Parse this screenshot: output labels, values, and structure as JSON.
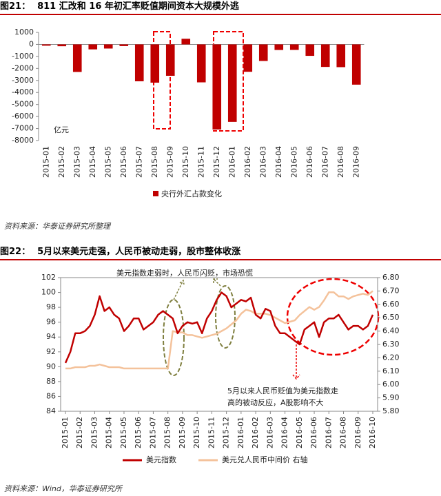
{
  "chart_data": [
    {
      "type": "bar",
      "figure_label": "图21：",
      "title": "811 汇改和 16 年初汇率贬值期间资本大规模外逃",
      "source": "资料来源：华泰证券研究所整理",
      "unit_label": "亿元",
      "categories": [
        "2015-01",
        "2015-02",
        "2015-03",
        "2015-04",
        "2015-05",
        "2015-06",
        "2015-07",
        "2015-08",
        "2015-09",
        "2015-10",
        "2015-11",
        "2015-12",
        "2016-01",
        "2016-02",
        "2016-03",
        "2016-04",
        "2016-05",
        "2016-06",
        "2016-07",
        "2016-08",
        "2016-09"
      ],
      "series": [
        {
          "name": "央行外汇占款变化",
          "color": "#c00000",
          "values": [
            -108,
            -155,
            -2293,
            -414,
            -345,
            -141,
            -3071,
            -3183,
            -2613,
            469,
            -3158,
            -7082,
            -6445,
            -2279,
            -1380,
            -465,
            -458,
            -953,
            -1875,
            -1894,
            -3350
          ]
        }
      ],
      "ylim": [
        -8000,
        1000
      ],
      "yticks": [
        -8000,
        -7000,
        -6000,
        -5000,
        -4000,
        -3000,
        -2000,
        -1000,
        0,
        1000
      ],
      "legend": "bottom"
    },
    {
      "type": "line",
      "figure_label": "图22：",
      "title": "5月以来美元走强，人民币被动走弱，股市整体收涨",
      "source": "资料来源：Wind，华泰证券研究所",
      "annotations": [
        "美元指数走弱时，人民币闪贬，市场恐慌",
        "5月以来人民币贬值为美元指数走",
        "高的被动反应，A股影响不大"
      ],
      "categories": [
        "2015-01",
        null,
        null,
        "2015-02",
        null,
        null,
        "2015-03",
        null,
        null,
        "2015-04",
        null,
        null,
        "2015-05",
        null,
        null,
        "2015-06",
        null,
        null,
        "2015-07",
        null,
        null,
        "2015-08",
        null,
        null,
        "2015-09",
        null,
        null,
        "2015-10",
        null,
        null,
        "2015-11",
        null,
        null,
        "2015-12",
        null,
        null,
        "2016-01",
        null,
        null,
        "2016-02",
        null,
        null,
        "2016-03",
        null,
        null,
        "2016-04",
        null,
        null,
        "2016-05",
        null,
        null,
        "2016-06",
        null,
        null,
        "2016-07",
        null,
        null,
        "2016-08",
        null,
        null,
        "2016-09",
        null,
        null,
        "2016-10"
      ],
      "series": [
        {
          "name": "美元指数",
          "color": "#c00000",
          "axis": "y",
          "values": [
            90.5,
            92,
            94.5,
            94.5,
            94.8,
            95.5,
            97,
            99.5,
            97.5,
            98,
            97,
            96.5,
            94.8,
            95.5,
            96.5,
            96.5,
            95,
            95.5,
            96,
            97,
            97.5,
            97,
            96.5,
            94.5,
            95.5,
            96,
            95.8,
            96,
            94.5,
            96.5,
            97.5,
            99,
            100,
            99.5,
            98,
            98.5,
            99,
            98.8,
            99.3,
            97,
            96.5,
            97.8,
            97.5,
            95.5,
            94.5,
            94.5,
            94,
            93.5,
            93,
            95,
            95.5,
            96,
            94,
            96,
            96.5,
            96.5,
            97,
            96,
            95,
            95.5,
            95.5,
            95,
            95.5,
            97
          ]
        },
        {
          "name": "美元兑人民币中间价 右轴",
          "color": "#f4c29b",
          "axis": "y2",
          "values": [
            6.12,
            6.12,
            6.13,
            6.13,
            6.13,
            6.14,
            6.14,
            6.15,
            6.14,
            6.13,
            6.13,
            6.13,
            6.12,
            6.12,
            6.12,
            6.12,
            6.12,
            6.12,
            6.12,
            6.12,
            6.12,
            6.12,
            6.4,
            6.39,
            6.39,
            6.37,
            6.37,
            6.36,
            6.35,
            6.36,
            6.37,
            6.38,
            6.4,
            6.42,
            6.45,
            6.48,
            6.53,
            6.56,
            6.55,
            6.53,
            6.53,
            6.53,
            6.52,
            6.5,
            6.48,
            6.46,
            6.47,
            6.48,
            6.52,
            6.55,
            6.58,
            6.56,
            6.58,
            6.63,
            6.69,
            6.69,
            6.66,
            6.66,
            6.64,
            6.66,
            6.67,
            6.68,
            6.67,
            6.7
          ]
        }
      ],
      "ylim": [
        84,
        102
      ],
      "yticks": [
        84,
        86,
        88,
        90,
        92,
        94,
        96,
        98,
        100,
        102
      ],
      "y2lim": [
        5.8,
        6.8
      ],
      "y2ticks": [
        {
          "value": 5.8,
          "label": "5.80"
        },
        {
          "value": 5.9,
          "label": "5.90"
        },
        {
          "value": 6.0,
          "label": "6.00"
        },
        {
          "value": 6.1,
          "label": "6.10"
        },
        {
          "value": 6.2,
          "label": "6.20"
        },
        {
          "value": 6.3,
          "label": "6.30"
        },
        {
          "value": 6.4,
          "label": "6.40"
        },
        {
          "value": 6.5,
          "label": "6.50"
        },
        {
          "value": 6.6,
          "label": "6.60"
        },
        {
          "value": 6.7,
          "label": "6.70"
        },
        {
          "value": 6.8,
          "label": "6.80"
        }
      ],
      "legend": "bottom"
    }
  ]
}
